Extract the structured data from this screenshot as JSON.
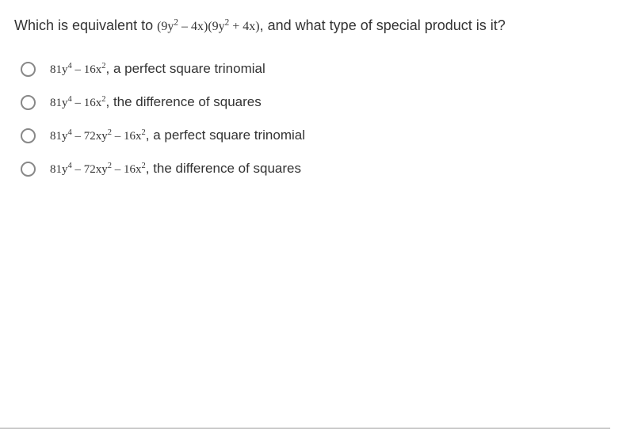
{
  "question": {
    "prefix": "Which is equivalent to ",
    "expression_html": "(9y<sup>2</sup> – 4x)(9y<sup>2</sup> + 4x)",
    "suffix": ", and what type of special product is it?"
  },
  "options": [
    {
      "expression_html": "81y<sup>4</sup> – 16x<sup>2</sup>",
      "description": ", a perfect square trinomial"
    },
    {
      "expression_html": "81y<sup>4</sup> – 16x<sup>2</sup>",
      "description": ", the difference of squares"
    },
    {
      "expression_html": "81y<sup>4</sup> – 72xy<sup>2</sup> – 16x<sup>2</sup>",
      "description": ", a perfect square trinomial"
    },
    {
      "expression_html": "81y<sup>4</sup> – 72xy<sup>2</sup> – 16x<sup>2</sup>",
      "description": ", the difference of squares"
    }
  ],
  "colors": {
    "background": "#ffffff",
    "text": "#333333",
    "radio_border": "#888888",
    "divider": "#999999"
  },
  "typography": {
    "question_fontsize": 18,
    "option_fontsize": 17,
    "math_fontsize_question": 16,
    "math_fontsize_option": 15
  }
}
